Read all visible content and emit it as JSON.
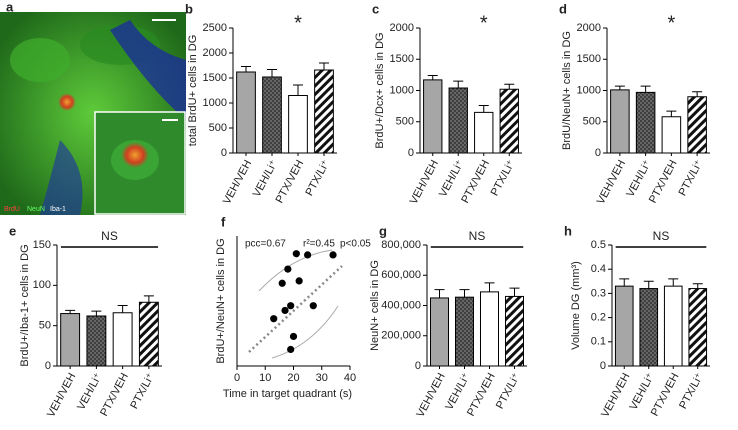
{
  "chart_data": [
    {
      "type": "image",
      "panel": "a",
      "labels": [
        "BrdU",
        "NeuN",
        "Iba-1"
      ]
    },
    {
      "type": "bar",
      "panel": "b",
      "y_label": "total BrdU+ cells in DG",
      "categories": [
        "VEH/VEH",
        "VEH/Li⁺",
        "PTX/VEH",
        "PTX/Li⁺"
      ],
      "values": [
        1620,
        1520,
        1150,
        1660
      ],
      "errors": [
        110,
        150,
        210,
        140
      ],
      "bar_styles": [
        "gray",
        "dots",
        "white",
        "hatch"
      ],
      "ylim": [
        0,
        2500
      ],
      "yticks": [
        0,
        500,
        1000,
        1500,
        2000,
        2500
      ],
      "annotations": [
        {
          "text": "*",
          "category": 2
        }
      ]
    },
    {
      "type": "bar",
      "panel": "c",
      "y_label": "BrdU+/Dcx+ cells in DG",
      "categories": [
        "VEH/VEH",
        "VEH/Li⁺",
        "PTX/VEH",
        "PTX/Li⁺"
      ],
      "values": [
        1170,
        1040,
        650,
        1020
      ],
      "errors": [
        70,
        110,
        110,
        80
      ],
      "bar_styles": [
        "gray",
        "dots",
        "white",
        "hatch"
      ],
      "ylim": [
        0,
        2000
      ],
      "yticks": [
        0,
        500,
        1000,
        1500,
        2000
      ],
      "annotations": [
        {
          "text": "*",
          "category": 2
        }
      ]
    },
    {
      "type": "bar",
      "panel": "d",
      "y_label": "BrdU/NeuN+ cells in DG",
      "categories": [
        "VEH/VEH",
        "VEH/Li⁺",
        "PTX/VEH",
        "PTX/Li⁺"
      ],
      "values": [
        1010,
        970,
        580,
        900
      ],
      "errors": [
        60,
        100,
        90,
        80
      ],
      "bar_styles": [
        "gray",
        "dots",
        "white",
        "hatch"
      ],
      "ylim": [
        0,
        2000
      ],
      "yticks": [
        0,
        500,
        1000,
        1500,
        2000
      ],
      "annotations": [
        {
          "text": "*",
          "category": 2
        }
      ]
    },
    {
      "type": "bar",
      "panel": "e",
      "y_label": "BrdU+/Iba-1+ cells in DG",
      "categories": [
        "VEH/VEH",
        "VEH/Li⁺",
        "PTX/VEH",
        "PTX/Li⁺"
      ],
      "values": [
        65,
        62,
        66,
        79
      ],
      "errors": [
        4,
        6,
        9,
        8
      ],
      "bar_styles": [
        "gray",
        "dots",
        "white",
        "hatch"
      ],
      "ylim": [
        0,
        150
      ],
      "yticks": [
        0,
        50,
        100,
        150
      ],
      "annotations": [
        {
          "text": "NS",
          "span": [
            0,
            3
          ]
        }
      ]
    },
    {
      "type": "scatter",
      "panel": "f",
      "y_label": "BrdU+/NeuN+ cells in  DG",
      "x_label": "Time in target quadrant (s)",
      "x": [
        13,
        16,
        17,
        18,
        19,
        19,
        20,
        21,
        22,
        25,
        27,
        34
      ],
      "values": [
        400,
        700,
        470,
        820,
        510,
        140,
        250,
        950,
        720,
        940,
        510,
        940
      ],
      "xlim": [
        0,
        40
      ],
      "xticks": [
        0,
        10,
        20,
        30,
        40
      ],
      "ylim": [
        0,
        1100
      ],
      "annotations": [
        "pcc=0.67",
        "r²=0.45",
        "p<0.05"
      ]
    },
    {
      "type": "bar",
      "panel": "g",
      "y_label": "NeuN+ cells in DG",
      "categories": [
        "VEH/VEH",
        "VEH/Li⁺",
        "PTX/VEH",
        "PTX/Li⁺"
      ],
      "values": [
        450000,
        455000,
        490000,
        460000
      ],
      "errors": [
        55000,
        50000,
        60000,
        55000
      ],
      "bar_styles": [
        "gray",
        "dots",
        "white",
        "hatch"
      ],
      "ylim": [
        0,
        800000
      ],
      "yticks": [
        0,
        {
          "value": 200000,
          "label": "200,000"
        },
        {
          "value": 400000,
          "label": "400,000"
        },
        {
          "value": 600000,
          "label": "600,000"
        },
        {
          "value": 800000,
          "label": "800,000"
        }
      ],
      "annotations": [
        {
          "text": "NS",
          "span": [
            0,
            3
          ]
        }
      ]
    },
    {
      "type": "bar",
      "panel": "h",
      "y_label": "Volume DG (mm³)",
      "categories": [
        "VEH/VEH",
        "VEH/Li⁺",
        "PTX/VEH",
        "PTX/Li⁺"
      ],
      "values": [
        0.33,
        0.32,
        0.33,
        0.32
      ],
      "errors": [
        0.03,
        0.03,
        0.03,
        0.02
      ],
      "bar_styles": [
        "gray",
        "dots",
        "white",
        "hatch"
      ],
      "ylim": [
        0,
        0.5
      ],
      "yticks": [
        0,
        0.1,
        0.2,
        0.3,
        0.4,
        0.5
      ],
      "annotations": [
        {
          "text": "NS",
          "span": [
            0,
            3
          ]
        }
      ]
    }
  ]
}
